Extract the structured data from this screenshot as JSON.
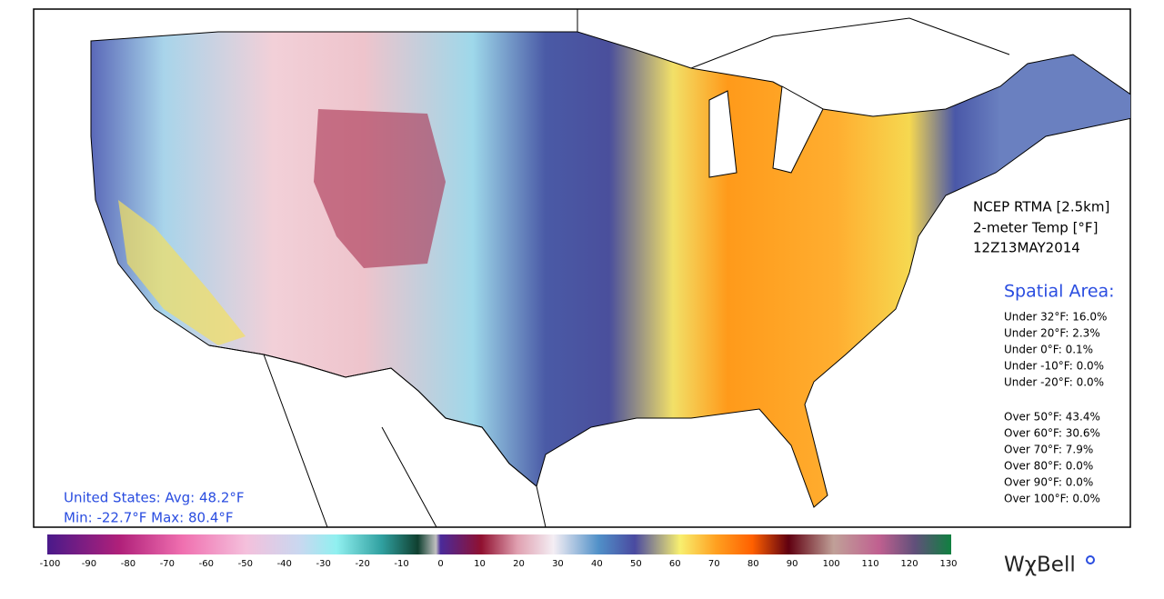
{
  "info": {
    "source": "NCEP RTMA [2.5km]",
    "variable": "2-meter Temp [°F]",
    "time": "12Z13MAY2014"
  },
  "spatial_area": {
    "title": "Spatial Area:",
    "under": [
      "Under 32°F: 16.0%",
      "Under 20°F: 2.3%",
      "Under 0°F: 0.1%",
      "Under -10°F: 0.0%",
      "Under -20°F: 0.0%"
    ],
    "over": [
      "Over 50°F: 43.4%",
      "Over 60°F: 30.6%",
      "Over 70°F: 7.9%",
      "Over 80°F: 0.0%",
      "Over 90°F: 0.0%",
      "Over 100°F: 0.0%"
    ]
  },
  "summary": {
    "line1": "United States: Avg:  48.2°F",
    "line2": "Min: -22.7°F Max: 80.4°F"
  },
  "colorbar": {
    "ticks": [
      -100,
      -90,
      -80,
      -70,
      -60,
      -50,
      -40,
      -30,
      -20,
      -10,
      0,
      10,
      20,
      30,
      40,
      50,
      60,
      70,
      80,
      90,
      100,
      110,
      120,
      130
    ]
  },
  "brand": "WχBell"
}
